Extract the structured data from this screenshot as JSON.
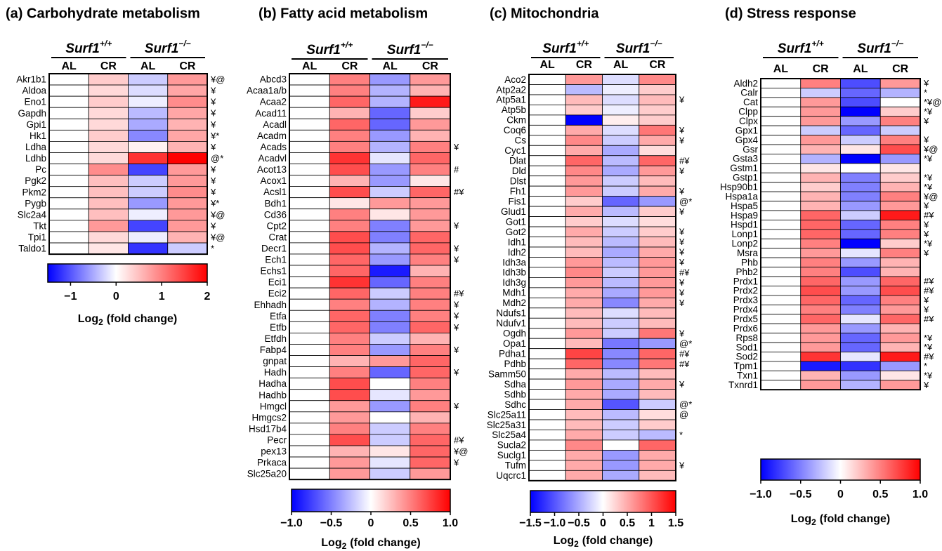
{
  "chart_data": [
    {
      "type": "heatmap",
      "title": "(a) Carbohydrate metabolism",
      "groups": [
        {
          "name": "Surf1",
          "sup": "+/+"
        },
        {
          "name": "Surf1",
          "sup": "−/−"
        }
      ],
      "columns": [
        "AL",
        "CR",
        "AL",
        "CR"
      ],
      "rows": [
        "Akr1b1",
        "Aldoa",
        "Eno1",
        "Gapdh",
        "Gpi1",
        "Hk1",
        "Ldha",
        "Ldhb",
        "Pc",
        "Pgk2",
        "Pkm2",
        "Pygb",
        "Slc2a4",
        "Tkt",
        "Tpi1",
        "Taldo1"
      ],
      "values": [
        [
          0,
          0.4,
          -0.3,
          0.8
        ],
        [
          0,
          0.3,
          -0.2,
          0.7
        ],
        [
          0,
          0.4,
          -0.1,
          0.9
        ],
        [
          0,
          0.3,
          -0.4,
          0.7
        ],
        [
          0,
          0.3,
          -0.5,
          0.6
        ],
        [
          0,
          0.4,
          -0.7,
          0.7
        ],
        [
          0,
          0.3,
          0.1,
          0.6
        ],
        [
          0,
          0.3,
          1.6,
          2.0
        ],
        [
          0,
          0.9,
          -1.1,
          0.8
        ],
        [
          0,
          0.5,
          -0.3,
          0.8
        ],
        [
          0,
          0.5,
          -0.3,
          0.9
        ],
        [
          0,
          0.5,
          -0.6,
          0.8
        ],
        [
          0,
          0.5,
          -0.1,
          0.8
        ],
        [
          0,
          0.8,
          -1.1,
          0.8
        ],
        [
          0,
          0.3,
          -0.1,
          0.6
        ],
        [
          0,
          0.2,
          -1.2,
          -0.3
        ]
      ],
      "annotations": [
        "¥@",
        "¥",
        "¥",
        "¥",
        "¥",
        "¥*",
        "¥",
        "@*",
        "¥",
        "¥",
        "¥",
        "¥*",
        "¥@",
        "¥",
        "¥@",
        "*"
      ],
      "vlim": [
        -1.5,
        2
      ],
      "vcenter": 0,
      "colors": {
        "low": "#0000ff",
        "mid": "#ffffff",
        "high": "#ff0000"
      },
      "vticks": [
        {
          "value": -1,
          "label": "−1"
        },
        0,
        1,
        2
      ],
      "colorbar_label": {
        "base": "Log",
        "sub": "2",
        "rest": "(fold change)"
      }
    },
    {
      "type": "heatmap",
      "title": "(b) Fatty acid metabolism",
      "groups": [
        {
          "name": "Surf1",
          "sup": "+/+"
        },
        {
          "name": "Surf1",
          "sup": "−/−"
        }
      ],
      "columns": [
        "AL",
        "CR",
        "AL",
        "CR"
      ],
      "rows": [
        "Abcd3",
        "Acaa1a/b",
        "Acaa2",
        "Acad11",
        "Acadl",
        "Acadm",
        "Acads",
        "Acadvl",
        "Acot13",
        "Acox1",
        "Acsl1",
        "Bdh1",
        "Cd36",
        "Cpt2",
        "Crat",
        "Decr1",
        "Ech1",
        "Echs1",
        "Eci1",
        "Eci2",
        "Ehhadh",
        "Etfa",
        "Etfb",
        "Etfdh",
        "Fabp4",
        "gnpat",
        "Hadh",
        "Hadha",
        "Hadhb",
        "Hmgcl",
        "Hmgcs2",
        "Hsd17b4",
        "Pecr",
        "pex13",
        "Prkaca",
        "Slc25a20"
      ],
      "values": [
        [
          0,
          0.5,
          -0.4,
          0.4
        ],
        [
          0,
          0.5,
          -0.3,
          0.3
        ],
        [
          0,
          0.6,
          -0.3,
          0.9
        ],
        [
          0,
          0.3,
          -0.6,
          0.2
        ],
        [
          0,
          0.6,
          -0.6,
          0.4
        ],
        [
          0,
          0.5,
          -0.4,
          0.3
        ],
        [
          0,
          0.5,
          -0.3,
          0.5
        ],
        [
          0,
          0.8,
          -0.1,
          0.6
        ],
        [
          0,
          0.7,
          -0.4,
          0.5
        ],
        [
          0,
          0.3,
          -0.4,
          0.1
        ],
        [
          0,
          0.7,
          -0.2,
          0.6
        ],
        [
          0,
          0.1,
          0.4,
          0.4
        ],
        [
          0,
          0.5,
          0.1,
          0.4
        ],
        [
          0,
          0.5,
          -0.5,
          0.4
        ],
        [
          0,
          0.7,
          -0.5,
          0.6
        ],
        [
          0,
          0.7,
          -0.3,
          0.6
        ],
        [
          0,
          0.6,
          -0.4,
          0.5
        ],
        [
          0,
          0.6,
          -0.9,
          0.3
        ],
        [
          0,
          0.8,
          -0.6,
          0.5
        ],
        [
          0,
          0.6,
          -0.2,
          0.5
        ],
        [
          0,
          0.5,
          -0.3,
          0.5
        ],
        [
          0,
          0.6,
          -0.5,
          0.5
        ],
        [
          0,
          0.6,
          -0.5,
          0.6
        ],
        [
          0,
          0.5,
          -0.2,
          0.3
        ],
        [
          0,
          0.5,
          -0.4,
          0.5
        ],
        [
          0,
          0.3,
          0.4,
          0.6
        ],
        [
          0,
          0.5,
          -0.6,
          0.6
        ],
        [
          0,
          0.7,
          0.0,
          0.5
        ],
        [
          0,
          0.7,
          -0.1,
          0.4
        ],
        [
          0,
          0.4,
          -0.4,
          0.5
        ],
        [
          0,
          0.4,
          0.0,
          0.3
        ],
        [
          0,
          0.5,
          -0.2,
          0.5
        ],
        [
          0,
          0.7,
          -0.2,
          0.6
        ],
        [
          0,
          0.3,
          0.1,
          0.6
        ],
        [
          0,
          0.4,
          -0.1,
          0.6
        ],
        [
          0,
          0.4,
          -0.2,
          0.4
        ]
      ],
      "annotations": [
        null,
        null,
        null,
        null,
        null,
        null,
        "¥",
        null,
        "#",
        null,
        "#¥",
        null,
        null,
        "¥",
        null,
        "¥",
        "¥",
        null,
        null,
        "#¥",
        "¥",
        "¥",
        "¥",
        null,
        "¥",
        null,
        "¥",
        null,
        null,
        "¥",
        null,
        null,
        "#¥",
        "¥@",
        "¥",
        null
      ],
      "vlim": [
        -1,
        1
      ],
      "vcenter": 0,
      "colors": {
        "low": "#0000ff",
        "mid": "#ffffff",
        "high": "#ff0000"
      },
      "vticks": [
        {
          "value": -1,
          "label": "−1.0"
        },
        {
          "value": -0.5,
          "label": "−0.5"
        },
        0,
        0.5,
        {
          "value": 1,
          "label": "1.0"
        }
      ],
      "colorbar_label": {
        "base": "Log",
        "sub": "2",
        "rest": "(fold change)"
      }
    },
    {
      "type": "heatmap",
      "title": "(c) Mitochondria",
      "groups": [
        {
          "name": "Surf1",
          "sup": "+/+"
        },
        {
          "name": "Surf1",
          "sup": "−/−"
        }
      ],
      "columns": [
        "AL",
        "CR",
        "AL",
        "CR"
      ],
      "rows": [
        "Aco2",
        "Atp2a2",
        "Atp5a1",
        "Atp5b",
        "Ckm",
        "Coq6",
        "Cs",
        "Cyc1",
        "Dlat",
        "Dld",
        "Dlst",
        "Fh1",
        "Fis1",
        "Glud1",
        "Got1",
        "Got2",
        "Idh1",
        "Idh2",
        "Idh3a",
        "Idh3b",
        "Idh3g",
        "Mdh1",
        "Mdh2",
        "Ndufs1",
        "Ndufv1",
        "Ogdh",
        "Opa1",
        "Pdha1",
        "Pdhb",
        "Samm50",
        "Sdha",
        "Sdhb",
        "Sdhc",
        "Slc25a11",
        "Slc25a31",
        "Slc25a4",
        "Sucla2",
        "Suclg1",
        "Tufm",
        "Uqcrc1"
      ],
      "values": [
        [
          0,
          0.6,
          -0.2,
          0.7
        ],
        [
          0,
          -0.4,
          -0.1,
          0.3
        ],
        [
          0,
          0.4,
          -0.2,
          0.4
        ],
        [
          0,
          0.3,
          -0.1,
          0.3
        ],
        [
          0,
          -1.5,
          0.1,
          0.3
        ],
        [
          0,
          0.5,
          -0.2,
          0.8
        ],
        [
          0,
          0.7,
          -0.3,
          0.5
        ],
        [
          0,
          0.5,
          -0.5,
          0.2
        ],
        [
          0,
          0.9,
          -0.4,
          0.9
        ],
        [
          0,
          0.7,
          -0.5,
          0.6
        ],
        [
          0,
          0.6,
          -0.3,
          0.4
        ],
        [
          0,
          0.6,
          -0.3,
          0.5
        ],
        [
          0,
          0.3,
          -0.9,
          -0.6
        ],
        [
          0,
          0.5,
          -0.4,
          0.3
        ],
        [
          0,
          0.3,
          -0.2,
          0.2
        ],
        [
          0,
          0.5,
          -0.3,
          0.3
        ],
        [
          0,
          0.4,
          -0.4,
          0.4
        ],
        [
          0,
          0.4,
          -0.5,
          0.5
        ],
        [
          0,
          0.6,
          -0.4,
          0.6
        ],
        [
          0,
          0.7,
          -0.3,
          0.6
        ],
        [
          0,
          0.6,
          -0.4,
          0.6
        ],
        [
          0,
          0.5,
          -0.5,
          0.6
        ],
        [
          0,
          0.5,
          -0.7,
          0.5
        ],
        [
          0,
          0.4,
          -0.2,
          0.4
        ],
        [
          0,
          0.4,
          -0.3,
          0.4
        ],
        [
          0,
          0.6,
          -0.3,
          0.8
        ],
        [
          0,
          0.4,
          -0.8,
          -0.6
        ],
        [
          0,
          1.1,
          -0.7,
          0.9
        ],
        [
          0,
          0.9,
          -0.7,
          0.8
        ],
        [
          0,
          0.5,
          -0.4,
          0.4
        ],
        [
          0,
          0.6,
          -0.5,
          0.5
        ],
        [
          0,
          0.5,
          -0.5,
          0.4
        ],
        [
          0,
          0.5,
          -1.0,
          -0.3
        ],
        [
          0,
          0.4,
          -0.4,
          0.2
        ],
        [
          0,
          0.4,
          -0.3,
          0.3
        ],
        [
          0,
          0.5,
          -0.3,
          -0.4
        ],
        [
          0,
          0.7,
          0.0,
          0.9
        ],
        [
          0,
          0.5,
          -0.6,
          0.5
        ],
        [
          0,
          0.5,
          -0.6,
          0.5
        ],
        [
          0,
          0.5,
          -0.5,
          0.4
        ]
      ],
      "annotations": [
        null,
        null,
        "¥",
        null,
        null,
        "¥",
        "¥",
        null,
        "#¥",
        "¥",
        null,
        "¥",
        "@*",
        "¥",
        null,
        "¥",
        "¥",
        "¥",
        "¥",
        "#¥",
        "¥",
        "¥",
        "¥",
        null,
        null,
        "¥",
        "@*",
        "#¥",
        "#¥",
        null,
        "¥",
        null,
        "@*",
        "@",
        null,
        "*",
        null,
        null,
        "¥",
        null
      ],
      "vlim": [
        -1.5,
        1.5
      ],
      "vcenter": 0,
      "colors": {
        "low": "#0000ff",
        "mid": "#ffffff",
        "high": "#ff0000"
      },
      "vticks": [
        {
          "value": -1.5,
          "label": "−1.5"
        },
        {
          "value": -1,
          "label": "−1.0"
        },
        {
          "value": -0.5,
          "label": "−0.5"
        },
        0,
        0.5,
        1,
        1.5
      ],
      "colorbar_label": {
        "base": "Log",
        "sub": "2",
        "rest": "(fold change)"
      }
    },
    {
      "type": "heatmap",
      "title": "(d) Stress response",
      "groups": [
        {
          "name": "Surf1",
          "sup": "+/+"
        },
        {
          "name": "Surf1",
          "sup": "−/−"
        }
      ],
      "columns": [
        "AL",
        "CR",
        "AL",
        "CR"
      ],
      "rows": [
        "Aldh2",
        "Calr",
        "Cat",
        "Clpp",
        "Clpx",
        "Gpx1",
        "Gpx4",
        "Gsr",
        "Gsta3",
        "Gstm1",
        "Gstp1",
        "Hsp90b1",
        "Hspa1a",
        "Hspa5",
        "Hspa9",
        "Hspd1",
        "Lonp1",
        "Lonp2",
        "Msra",
        "Phb",
        "Phb2",
        "Prdx1",
        "Prdx2",
        "Prdx3",
        "Prdx4",
        "Prdx5",
        "Prdx6",
        "Rps8",
        "Sod1",
        "Sod2",
        "Tpm1",
        "Txn1",
        "Txnrd1"
      ],
      "values": [
        [
          0,
          0.5,
          -0.7,
          0.4
        ],
        [
          0,
          -0.2,
          -0.6,
          -0.3
        ],
        [
          0,
          0.4,
          -0.7,
          0.0
        ],
        [
          0,
          0.4,
          -1.0,
          0.2
        ],
        [
          0,
          0.4,
          -0.4,
          0.5
        ],
        [
          0,
          -0.2,
          -0.6,
          -0.2
        ],
        [
          0,
          0.4,
          -0.2,
          0.5
        ],
        [
          0,
          0.3,
          0.1,
          0.7
        ],
        [
          0,
          -0.3,
          -1.0,
          -0.4
        ],
        [
          0,
          0.1,
          0.0,
          0.1
        ],
        [
          0,
          0.3,
          -0.5,
          0.2
        ],
        [
          0,
          0.2,
          -0.5,
          0.3
        ],
        [
          0,
          0.3,
          -0.5,
          0.5
        ],
        [
          0,
          0.3,
          -0.4,
          0.4
        ],
        [
          0,
          0.6,
          -0.2,
          0.9
        ],
        [
          0,
          0.6,
          -0.6,
          0.5
        ],
        [
          0,
          0.6,
          -0.6,
          0.5
        ],
        [
          0,
          0.5,
          -1.0,
          0.2
        ],
        [
          0,
          0.4,
          -0.1,
          0.5
        ],
        [
          0,
          0.5,
          -0.4,
          0.3
        ],
        [
          0,
          0.5,
          -0.7,
          0.3
        ],
        [
          0,
          0.6,
          -0.4,
          0.6
        ],
        [
          0,
          0.7,
          -0.4,
          0.7
        ],
        [
          0,
          0.6,
          -0.6,
          0.5
        ],
        [
          0,
          0.5,
          -0.5,
          0.4
        ],
        [
          0,
          0.6,
          -0.1,
          0.6
        ],
        [
          0,
          0.4,
          -0.4,
          0.3
        ],
        [
          0,
          0.4,
          -0.6,
          0.4
        ],
        [
          0,
          0.4,
          -0.6,
          0.3
        ],
        [
          0,
          0.8,
          -0.1,
          0.9
        ],
        [
          0,
          -0.9,
          -0.8,
          -0.4
        ],
        [
          0,
          0.3,
          -0.4,
          0.1
        ],
        [
          0,
          0.4,
          -0.3,
          0.4
        ]
      ],
      "annotations": [
        "¥",
        "*",
        "*¥@",
        "*¥",
        "¥",
        null,
        "¥",
        "¥@",
        "*¥",
        null,
        "*¥",
        "*¥",
        "¥@",
        "¥",
        "#¥",
        "¥",
        "¥",
        "*¥",
        "¥",
        null,
        null,
        "#¥",
        "#¥",
        "¥",
        "¥",
        "#¥",
        null,
        "*¥",
        "*¥",
        "#¥",
        "*",
        "*¥",
        "¥"
      ],
      "vlim": [
        -1,
        1
      ],
      "vcenter": 0,
      "colors": {
        "low": "#0000ff",
        "mid": "#ffffff",
        "high": "#ff0000"
      },
      "vticks": [
        {
          "value": -1,
          "label": "−1.0"
        },
        {
          "value": -0.5,
          "label": "−0.5"
        },
        0,
        0.5,
        {
          "value": 1,
          "label": "1.0"
        }
      ],
      "colorbar_label": {
        "base": "Log",
        "sub": "2",
        "rest": "(fold change)"
      }
    }
  ]
}
